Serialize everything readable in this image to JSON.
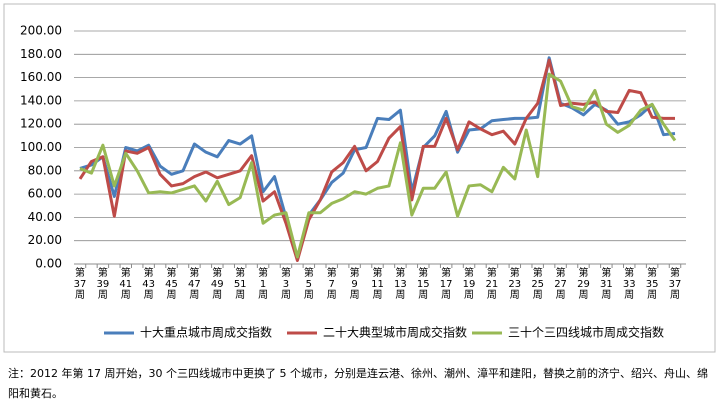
{
  "chart_data": {
    "type": "line",
    "categories": [
      "第37周",
      null,
      "第39周",
      null,
      "第41周",
      null,
      "第43周",
      null,
      "第45周",
      null,
      "第47周",
      null,
      "第49周",
      null,
      "第51周",
      null,
      "第1周",
      null,
      "第3周",
      null,
      "第5周",
      null,
      "第7周",
      null,
      "第9周",
      null,
      "第11周",
      null,
      "第13周",
      null,
      "第15周",
      null,
      "第17周",
      null,
      "第19周",
      null,
      "第21周",
      null,
      "第23周",
      null,
      "第25周",
      null,
      "第27周",
      null,
      "第29周",
      null,
      "第31周",
      null,
      "第33周",
      null,
      "第35周",
      null,
      "第37周"
    ],
    "series": [
      {
        "name": "十大重点城市周成交指数",
        "color": "#4a7ebb",
        "values": [
          82,
          85,
          92,
          58,
          100,
          97,
          102,
          84,
          77,
          80,
          103,
          96,
          92,
          106,
          103,
          110,
          62,
          75,
          40,
          4,
          42,
          55,
          70,
          78,
          98,
          100,
          125,
          124,
          132,
          62,
          100,
          110,
          131,
          96,
          115,
          116,
          123,
          124,
          125,
          125,
          126,
          177,
          138,
          134,
          128,
          137,
          132,
          120,
          122,
          128,
          137,
          111,
          112
        ]
      },
      {
        "name": "二十大典型城市周成交指数",
        "color": "#be4b48",
        "values": [
          73,
          88,
          92,
          41,
          97,
          95,
          100,
          77,
          67,
          69,
          75,
          79,
          74,
          77,
          80,
          93,
          54,
          62,
          35,
          3,
          38,
          55,
          79,
          87,
          101,
          80,
          88,
          108,
          118,
          55,
          101,
          101,
          125,
          98,
          122,
          116,
          111,
          114,
          103,
          125,
          138,
          175,
          136,
          138,
          137,
          139,
          131,
          130,
          149,
          147,
          126,
          125,
          125
        ]
      },
      {
        "name": "三十个三四线城市周成交指数",
        "color": "#98b954",
        "values": [
          82,
          78,
          102,
          67,
          95,
          80,
          61,
          62,
          61,
          64,
          67,
          54,
          71,
          51,
          57,
          87,
          35,
          42,
          44,
          6,
          44,
          44,
          52,
          56,
          62,
          60,
          65,
          67,
          104,
          42,
          65,
          65,
          79,
          41,
          67,
          68,
          62,
          83,
          73,
          115,
          75,
          163,
          157,
          135,
          132,
          149,
          120,
          113,
          119,
          132,
          137,
          120,
          106
        ]
      }
    ],
    "ylim": [
      0,
      200
    ],
    "yticks": [
      {
        "value": 0,
        "label": "0.00"
      },
      {
        "value": 20,
        "label": "20.00"
      },
      {
        "value": 40,
        "label": "40.00"
      },
      {
        "value": 60,
        "label": "60.00"
      },
      {
        "value": 80,
        "label": "80.00"
      },
      {
        "value": 100,
        "label": "100.00"
      },
      {
        "value": 120,
        "label": "120.00"
      },
      {
        "value": 140,
        "label": "140.00"
      },
      {
        "value": 160,
        "label": "160.00"
      },
      {
        "value": 180,
        "label": "180.00"
      },
      {
        "value": 200,
        "label": "200.00"
      }
    ],
    "grid": true,
    "legend": "bottom",
    "note": "注：2012 年第 17 周开始，30 个三四线城市中更换了 5 个城市，分别是连云港、徐州、潮州、漳平和建阳，替换之前的济宁、绍兴、舟山、绵阳和黄石。"
  }
}
